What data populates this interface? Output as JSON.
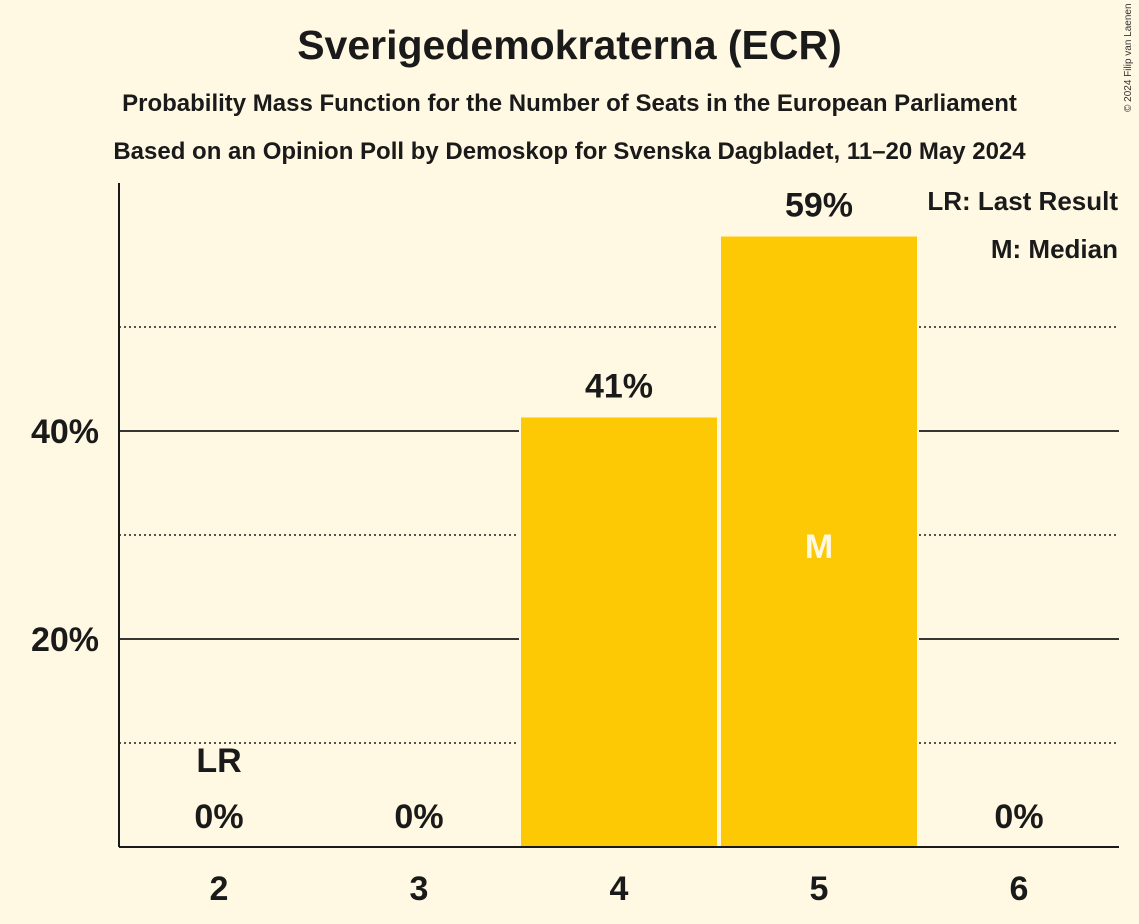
{
  "title": "Sverigedemokraterna (ECR)",
  "subtitle": "Probability Mass Function for the Number of Seats in the European Parliament",
  "subtitle2": "Based on an Opinion Poll by Demoskop for Svenska Dagbladet, 11–20 May 2024",
  "copyright": "© 2024 Filip van Laenen",
  "legend": [
    "LR: Last Result",
    "M: Median"
  ],
  "colors": {
    "bar": "#fdc905",
    "background": "#fff8e3",
    "text": "#1a1a1a",
    "median_label": "#fff8e3"
  },
  "chart_data": {
    "type": "bar",
    "categories": [
      "2",
      "3",
      "4",
      "5",
      "6"
    ],
    "values": [
      0,
      0,
      41.3,
      58.7,
      0
    ],
    "data_labels": [
      "0%",
      "0%",
      "41%",
      "59%",
      "0%"
    ],
    "ylim": [
      0,
      63
    ],
    "yticks": [
      20,
      40
    ],
    "ytick_labels": [
      "20%",
      "40%"
    ],
    "minor_gridlines": [
      10,
      30,
      50
    ],
    "annotations": [
      {
        "category": "2",
        "label": "LR",
        "meaning": "Last Result"
      },
      {
        "category": "5",
        "label": "M",
        "meaning": "Median"
      }
    ],
    "grid": true,
    "legend_position": "top-right"
  }
}
